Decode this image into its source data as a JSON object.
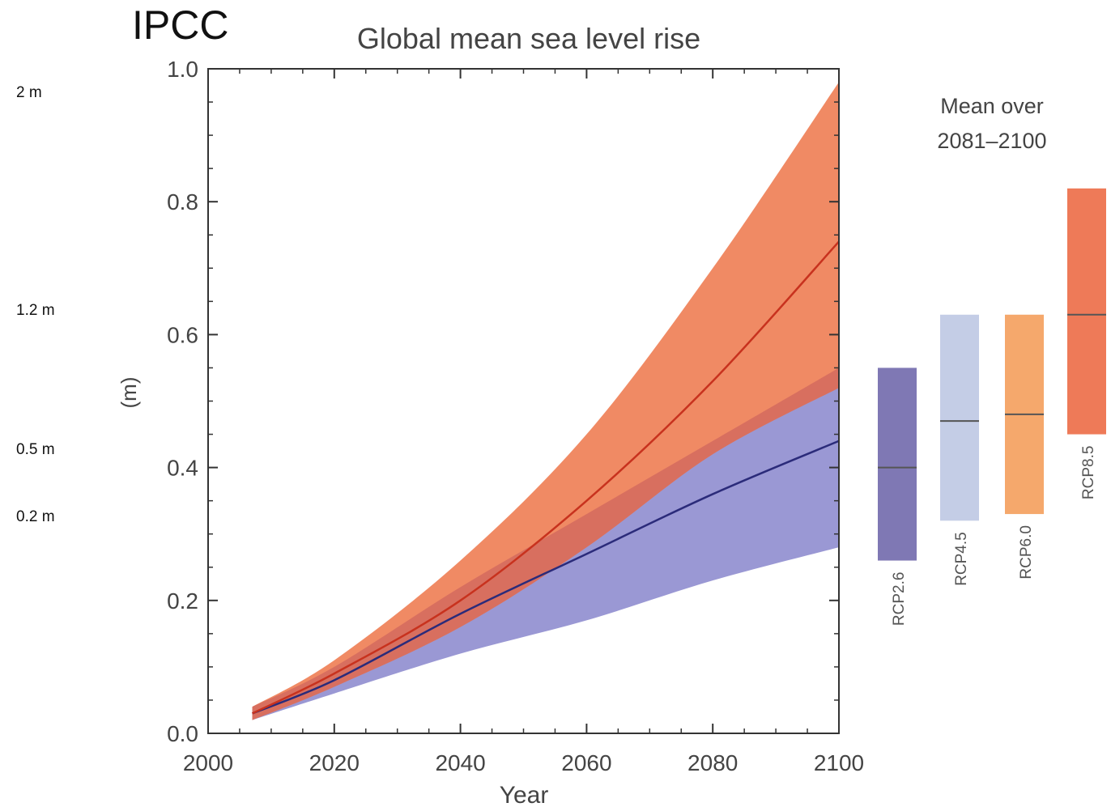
{
  "slide_title": "IPCC",
  "side_labels": [
    "2 m",
    "1.2 m",
    "0.5 m",
    "0.2 m"
  ],
  "colors": {
    "low_band": "#9a98d4",
    "low_line": "#2b2b7a",
    "high_band": "#f08a64",
    "high_line": "#c8321e",
    "overlap": "#d46a5e",
    "rcp26": "#7f78b4",
    "rcp45": "#c4cde6",
    "rcp60": "#f5a86c",
    "rcp85": "#ee7a58",
    "median": "#555555",
    "axis": "#333333"
  },
  "chart_data": {
    "type": "area",
    "title": "Global mean sea level rise",
    "xlabel": "Year",
    "ylabel": "(m)",
    "xlim": [
      2000,
      2100
    ],
    "ylim": [
      0,
      1.0
    ],
    "xticks": [
      2000,
      2020,
      2040,
      2060,
      2080,
      2100
    ],
    "yticks": [
      0.0,
      0.2,
      0.4,
      0.6,
      0.8,
      1.0
    ],
    "x": [
      2007,
      2020,
      2040,
      2060,
      2080,
      2100
    ],
    "series": [
      {
        "name": "RCP2.6",
        "band": "low",
        "mean": [
          0.03,
          0.08,
          0.18,
          0.27,
          0.36,
          0.44
        ],
        "lower": [
          0.02,
          0.06,
          0.12,
          0.17,
          0.23,
          0.28
        ],
        "upper": [
          0.04,
          0.1,
          0.22,
          0.33,
          0.44,
          0.55
        ]
      },
      {
        "name": "RCP8.5",
        "band": "high",
        "mean": [
          0.03,
          0.09,
          0.2,
          0.35,
          0.53,
          0.74
        ],
        "lower": [
          0.02,
          0.07,
          0.16,
          0.28,
          0.42,
          0.52
        ],
        "upper": [
          0.04,
          0.11,
          0.26,
          0.45,
          0.7,
          0.98
        ]
      }
    ],
    "legend_title": "Mean over 2081–2100",
    "ranges": [
      {
        "name": "RCP2.6",
        "low": 0.26,
        "high": 0.55,
        "median": 0.4
      },
      {
        "name": "RCP4.5",
        "low": 0.32,
        "high": 0.63,
        "median": 0.47
      },
      {
        "name": "RCP6.0",
        "low": 0.33,
        "high": 0.63,
        "median": 0.48
      },
      {
        "name": "RCP8.5",
        "low": 0.45,
        "high": 0.82,
        "median": 0.63
      }
    ]
  }
}
